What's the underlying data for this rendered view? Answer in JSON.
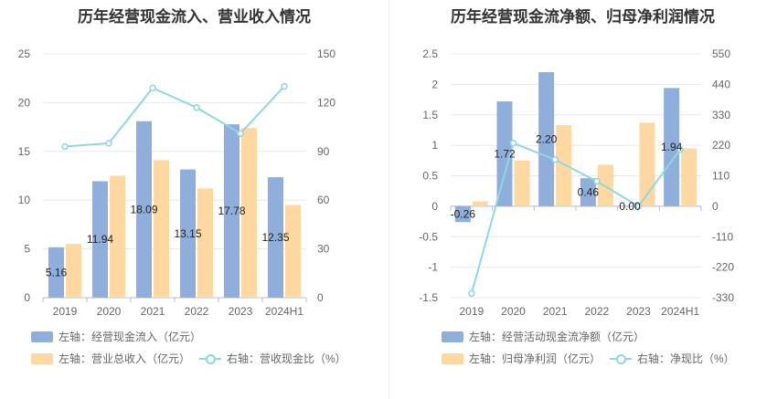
{
  "titles": {
    "left": "历年经营现金流入、营业收入情况",
    "right": "历年经营现金流净额、归母净利润情况"
  },
  "legend": {
    "left": [
      "左轴：经营现金流入（亿元）",
      "左轴：营业总收入（亿元）",
      "右轴：营收现金比（%）"
    ],
    "right": [
      "左轴：经营活动现金流净额（亿元）",
      "左轴：归母净利润（亿元）",
      "右轴：净现比（%）"
    ]
  },
  "colors": {
    "bar_primary": "#8eaedb",
    "bar_secondary": "#fdd8a0",
    "line": "#8dd8df"
  },
  "chart_data": [
    {
      "type": "bar",
      "title": "历年经营现金流入、营业收入情况",
      "categories": [
        "2019",
        "2020",
        "2021",
        "2022",
        "2023",
        "2024H1"
      ],
      "left_axis": {
        "min": 0,
        "max": 25,
        "ticks": [
          0,
          5,
          10,
          15,
          20,
          25
        ]
      },
      "right_axis": {
        "min": 0,
        "max": 150,
        "ticks": [
          0,
          30,
          60,
          90,
          120,
          150
        ]
      },
      "series": [
        {
          "name": "左轴：经营现金流入（亿元）",
          "type": "bar",
          "axis": "left",
          "values": [
            5.16,
            11.94,
            18.09,
            13.15,
            17.78,
            12.35
          ],
          "labels": [
            "5.16",
            "11.94",
            "18.09",
            "13.15",
            "17.78",
            "12.35"
          ]
        },
        {
          "name": "左轴：营业总收入（亿元）",
          "type": "bar",
          "axis": "left",
          "values": [
            5.5,
            12.5,
            14.1,
            11.2,
            17.4,
            9.5
          ]
        },
        {
          "name": "右轴：营收现金比（%）",
          "type": "line",
          "axis": "right",
          "values": [
            93,
            95,
            129,
            117,
            101,
            130
          ]
        }
      ],
      "grid": true,
      "legend_position": "bottom"
    },
    {
      "type": "bar",
      "title": "历年经营现金流净额、归母净利润情况",
      "categories": [
        "2019",
        "2020",
        "2021",
        "2022",
        "2023",
        "2024H1"
      ],
      "left_axis": {
        "min": -1.5,
        "max": 2.5,
        "ticks": [
          -1.5,
          -1,
          -0.5,
          0,
          0.5,
          1,
          1.5,
          2,
          2.5
        ]
      },
      "right_axis": {
        "min": -330,
        "max": 550,
        "ticks": [
          -330,
          -220,
          -110,
          0,
          110,
          220,
          330,
          440,
          550
        ]
      },
      "series": [
        {
          "name": "左轴：经营活动现金流净额（亿元）",
          "type": "bar",
          "axis": "left",
          "values": [
            -0.26,
            1.72,
            2.2,
            0.46,
            0.0,
            1.94
          ],
          "labels": [
            "-0.26",
            "1.72",
            "2.20",
            "0.46",
            "0.00",
            "1.94"
          ]
        },
        {
          "name": "左轴：归母净利润（亿元）",
          "type": "bar",
          "axis": "left",
          "values": [
            0.08,
            0.75,
            1.33,
            0.68,
            1.37,
            0.95
          ]
        },
        {
          "name": "右轴：净现比（%）",
          "type": "line",
          "axis": "right",
          "values": [
            -315,
            228,
            168,
            90,
            0,
            205
          ]
        }
      ],
      "grid": true,
      "legend_position": "bottom"
    }
  ]
}
